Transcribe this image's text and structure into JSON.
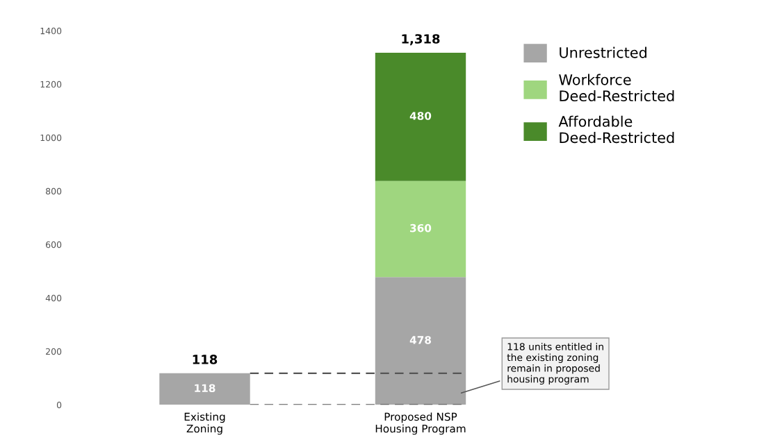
{
  "chart_data": {
    "type": "bar",
    "stacked": true,
    "categories": [
      "Existing\nZoning",
      "Proposed NSP\nHousing Program"
    ],
    "series": [
      {
        "name": "Unrestricted",
        "color": "#a6a6a6",
        "values": [
          118,
          478
        ],
        "value_labels": [
          "118",
          "478"
        ]
      },
      {
        "name": "Workforce\nDeed-Restricted",
        "color": "#9fd67f",
        "values": [
          null,
          360
        ],
        "value_labels": [
          null,
          "360"
        ]
      },
      {
        "name": "Affordable\nDeed-Restricted",
        "color": "#4a8a2a",
        "values": [
          null,
          480
        ],
        "value_labels": [
          null,
          "480"
        ]
      }
    ],
    "totals": [
      "118",
      "1,318"
    ],
    "ylim": [
      0,
      1400
    ],
    "yticks": [
      0,
      200,
      400,
      600,
      800,
      1000,
      1200,
      1400
    ],
    "ref_lines": [
      {
        "axis": "y",
        "value": 118,
        "line_style": "dashed",
        "color": "#555555"
      },
      {
        "axis": "y",
        "value": 0,
        "line_style": "dashed",
        "color": "#555555"
      }
    ],
    "annotations": [
      "118 units entitled in\nthe existing zoning\nremain in proposed\nhousing program"
    ],
    "legend": "top right",
    "grid": false
  }
}
